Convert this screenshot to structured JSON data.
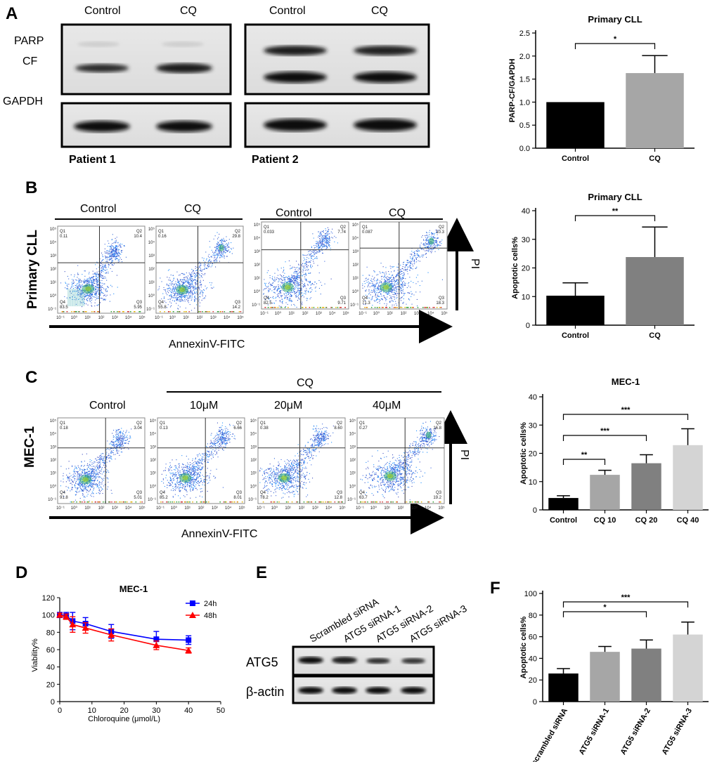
{
  "panels": {
    "A": "A",
    "B": "B",
    "C": "C",
    "D": "D",
    "E": "E",
    "F": "F"
  },
  "blotA": {
    "col_labels": [
      "Control",
      "CQ",
      "Control",
      "CQ"
    ],
    "row_labels": {
      "parp": "PARP",
      "cf": "CF",
      "gapdh": "GAPDH"
    },
    "patients": [
      "Patient 1",
      "Patient 2"
    ]
  },
  "flowB": {
    "groups": [
      "Control",
      "CQ",
      "Control",
      "CQ"
    ],
    "row_label": "Primary CLL",
    "x_axis": "AnnexinV-FITC",
    "y_axis": "PI",
    "plots": [
      {
        "q1": "0.11",
        "q2": "10.4",
        "q3": "5.95",
        "q4": "83.5"
      },
      {
        "q1": "0.16",
        "q2": "29.8",
        "q3": "14.2",
        "q4": "55.8"
      },
      {
        "q1": "0.033",
        "q2": "7.74",
        "q3": "9.71",
        "q4": "82.5"
      },
      {
        "q1": "0.087",
        "q2": "10.3",
        "q3": "18.3",
        "q4": "71.3"
      }
    ]
  },
  "flowC": {
    "group_label": "CQ",
    "columns": [
      "Control",
      "10μM",
      "20μM",
      "40μM"
    ],
    "row_label": "MEC-1",
    "x_axis": "AnnexinV-FITC",
    "y_axis": "PI",
    "plots": [
      {
        "q1": "0.18",
        "q2": "3.04",
        "q3": "5.01",
        "q4": "91.8"
      },
      {
        "q1": "0.13",
        "q2": "6.66",
        "q3": "8.01",
        "q4": "85.2"
      },
      {
        "q1": "0.38",
        "q2": "8.60",
        "q3": "12.8",
        "q4": "78.2"
      },
      {
        "q1": "0.27",
        "q2": "16.8",
        "q3": "19.2",
        "q4": "63.7"
      }
    ]
  },
  "blotE": {
    "lanes": [
      "Scrambled siRNA",
      "ATG5  siRNA-1",
      "ATG5  siRNA-2",
      "ATG5  siRNA-3"
    ],
    "rows": [
      "ATG5",
      "β-actin"
    ]
  },
  "flow_ticks": {
    "x": [
      "10⁻¹",
      "10⁰",
      "10¹",
      "10²",
      "10³",
      "10⁴",
      "10⁵"
    ],
    "y": [
      "10⁻¹",
      "10⁰",
      "10¹",
      "10²",
      "10³",
      "10⁴",
      "10⁵"
    ]
  },
  "chart_data": [
    {
      "id": "A",
      "type": "bar",
      "title": "Primary CLL",
      "ylabel": "PARP-CF/GAPDH",
      "xlabel": "",
      "categories": [
        "Control",
        "CQ"
      ],
      "values": [
        1.0,
        1.63
      ],
      "errors": [
        0,
        0.38
      ],
      "colors": [
        "#000000",
        "#a6a6a6"
      ],
      "ylim": [
        0,
        2.5
      ],
      "yticks": [
        0,
        0.5,
        1.0,
        1.5,
        2.0,
        2.5
      ],
      "ytick_labels": [
        "0.0",
        "0.5",
        "1.0",
        "1.5",
        "2.0",
        "2.5"
      ],
      "significance": [
        {
          "from": 0,
          "to": 1,
          "label": "*"
        }
      ]
    },
    {
      "id": "B",
      "type": "bar",
      "title": "Primary CLL",
      "ylabel": "Apoptotic cells%",
      "xlabel": "",
      "categories": [
        "Control",
        "CQ"
      ],
      "values": [
        10.3,
        23.8
      ],
      "errors": [
        4.5,
        10.5
      ],
      "colors": [
        "#000000",
        "#808080"
      ],
      "ylim": [
        0,
        40
      ],
      "yticks": [
        0,
        10,
        20,
        30,
        40
      ],
      "ytick_labels": [
        "0",
        "10",
        "20",
        "30",
        "40"
      ],
      "significance": [
        {
          "from": 0,
          "to": 1,
          "label": "**"
        }
      ]
    },
    {
      "id": "C",
      "type": "bar",
      "title": "MEC-1",
      "ylabel": "Apoptotic cells%",
      "xlabel": "",
      "categories": [
        "Control",
        "CQ 10",
        "CQ 20",
        "CQ 40"
      ],
      "values": [
        4.2,
        12.4,
        16.5,
        22.9
      ],
      "errors": [
        0.8,
        1.6,
        3.0,
        5.8
      ],
      "colors": [
        "#000000",
        "#a6a6a6",
        "#808080",
        "#d4d4d4"
      ],
      "ylim": [
        0,
        40
      ],
      "yticks": [
        0,
        10,
        20,
        30,
        40
      ],
      "ytick_labels": [
        "0",
        "10",
        "20",
        "30",
        "40"
      ],
      "significance": [
        {
          "from": 0,
          "to": 1,
          "label": "**"
        },
        {
          "from": 0,
          "to": 2,
          "label": "***"
        },
        {
          "from": 0,
          "to": 3,
          "label": "***"
        }
      ]
    },
    {
      "id": "D",
      "type": "line",
      "title": "MEC-1",
      "xlabel": "Chloroquine (μmol/L)",
      "ylabel": "Viability%",
      "xlim": [
        0,
        50
      ],
      "ylim": [
        0,
        120
      ],
      "xticks": [
        0,
        10,
        20,
        30,
        40,
        50
      ],
      "yticks": [
        0,
        20,
        40,
        60,
        80,
        100,
        120
      ],
      "series": [
        {
          "name": "24h",
          "color": "#0000ff",
          "marker": "square",
          "x": [
            0,
            2,
            4,
            8,
            16,
            30,
            40
          ],
          "y": [
            100,
            99,
            93,
            90,
            81,
            72,
            71
          ],
          "err": [
            3,
            4,
            10,
            7,
            8,
            9,
            5
          ]
        },
        {
          "name": "48h",
          "color": "#ff0000",
          "marker": "triangle",
          "x": [
            0,
            2,
            4,
            8,
            16,
            30,
            40
          ],
          "y": [
            100,
            98,
            89,
            85,
            77,
            65,
            59
          ],
          "err": [
            2,
            3,
            9,
            6,
            7,
            5,
            3
          ]
        }
      ]
    },
    {
      "id": "F",
      "type": "bar",
      "title": "",
      "ylabel": "Apoptotic cells%",
      "xlabel": "",
      "categories": [
        "scrambled siRNA",
        "ATG5 siRNA-1",
        "ATG5 siRNA-2",
        "ATG5 siRNA-3"
      ],
      "values": [
        26,
        46,
        49,
        62
      ],
      "errors": [
        4.5,
        5,
        8,
        11.5
      ],
      "colors": [
        "#000000",
        "#a6a6a6",
        "#808080",
        "#d4d4d4"
      ],
      "ylim": [
        0,
        100
      ],
      "yticks": [
        0,
        20,
        40,
        60,
        80,
        100
      ],
      "ytick_labels": [
        "0",
        "20",
        "40",
        "60",
        "80",
        "100"
      ],
      "significance": [
        {
          "from": 0,
          "to": 2,
          "label": "*"
        },
        {
          "from": 0,
          "to": 3,
          "label": "***"
        }
      ]
    }
  ]
}
